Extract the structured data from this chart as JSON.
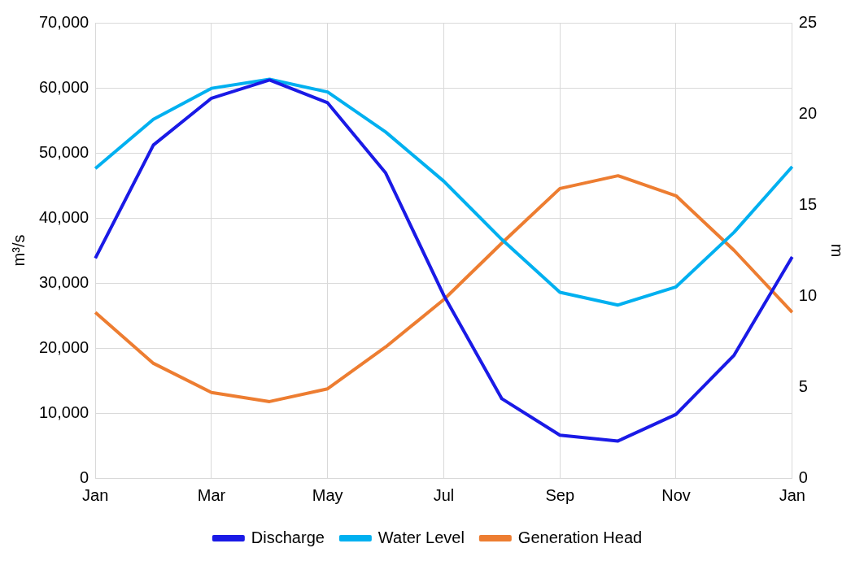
{
  "chart_data": {
    "type": "line",
    "xlabel": null,
    "ylabel": "m³/s",
    "y2label": "m",
    "categories": [
      "Jan",
      null,
      "Mar",
      null,
      "May",
      null,
      "Jul",
      null,
      "Sep",
      null,
      "Nov",
      null,
      "Jan"
    ],
    "series": [
      {
        "name": "Discharge",
        "color": "#1a1ae6",
        "values": [
          33800,
          51200,
          58400,
          61200,
          57700,
          46900,
          28100,
          12200,
          6600,
          5700,
          9800,
          18900,
          34000
        ]
      },
      {
        "name": "Water Level",
        "color": "#00b0f0",
        "axis": "y2",
        "values": [
          17.0,
          19.7,
          21.4,
          21.9,
          21.2,
          19.0,
          16.3,
          13.1,
          10.2,
          9.5,
          10.5,
          13.5,
          17.1
        ]
      },
      {
        "name": "Generation Head",
        "color": "#ed7d31",
        "axis": "y2",
        "values": [
          9.1,
          6.3,
          4.7,
          4.2,
          4.9,
          7.2,
          9.8,
          12.9,
          15.9,
          16.6,
          15.5,
          12.5,
          9.1
        ]
      }
    ],
    "ylim": [
      0,
      70000
    ],
    "yticks": [
      0,
      {
        "value": 10000,
        "label": "10,000"
      },
      {
        "value": 20000,
        "label": "20,000"
      },
      {
        "value": 30000,
        "label": "30,000"
      },
      {
        "value": 40000,
        "label": "40,000"
      },
      {
        "value": 50000,
        "label": "50,000"
      },
      {
        "value": 60000,
        "label": "60,000"
      },
      {
        "value": 70000,
        "label": "70,000"
      }
    ],
    "y2lim": [
      0,
      25
    ],
    "y2ticks": [
      0,
      5,
      10,
      15,
      20,
      25
    ],
    "grid": true,
    "legend": "bottom",
    "marker": "none",
    "line_style": "solid"
  }
}
